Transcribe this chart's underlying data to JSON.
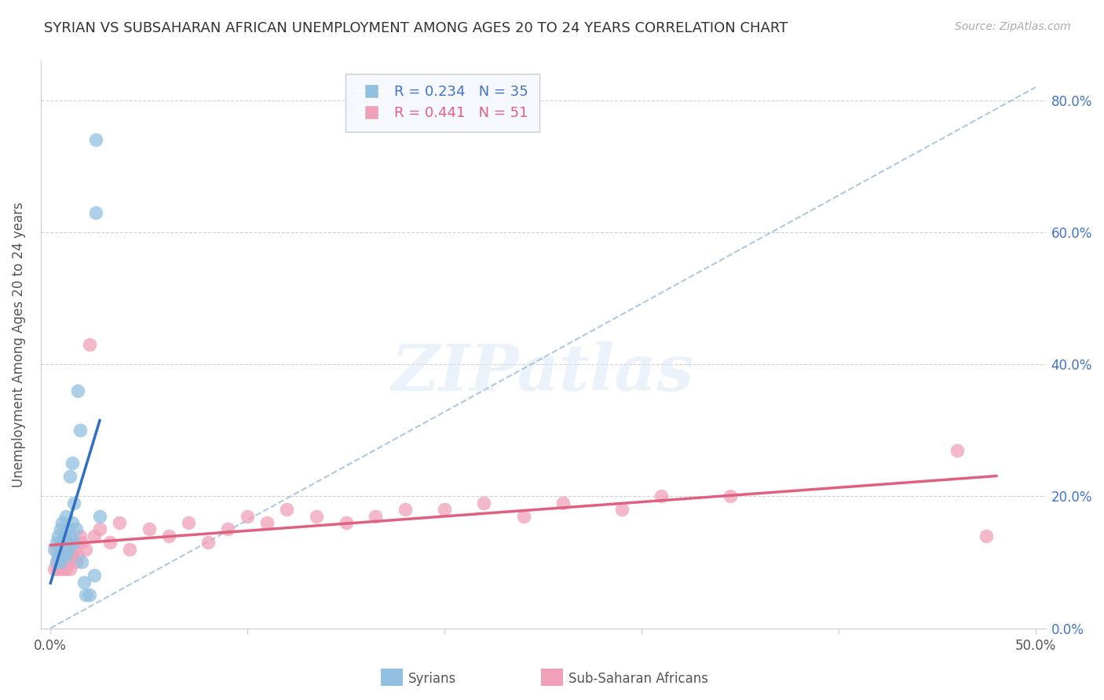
{
  "title": "SYRIAN VS SUBSAHARAN AFRICAN UNEMPLOYMENT AMONG AGES 20 TO 24 YEARS CORRELATION CHART",
  "source": "Source: ZipAtlas.com",
  "ylabel": "Unemployment Among Ages 20 to 24 years",
  "xlim": [
    0.0,
    0.5
  ],
  "ylim": [
    0.0,
    0.86
  ],
  "ytick_vals": [
    0.0,
    0.2,
    0.4,
    0.6,
    0.8
  ],
  "ytick_labels": [
    "0.0%",
    "20.0%",
    "40.0%",
    "60.0%",
    "80.0%"
  ],
  "xtick_vals": [
    0.0,
    0.1,
    0.2,
    0.3,
    0.4,
    0.5
  ],
  "xtick_labels": [
    "0.0%",
    "",
    "",
    "",
    "",
    "50.0%"
  ],
  "background_color": "#ffffff",
  "grid_color": "#d0d0d0",
  "syrian_R": 0.234,
  "syrian_N": 35,
  "subsaharan_R": 0.441,
  "subsaharan_N": 51,
  "syrian_color": "#92c0e0",
  "subsaharan_color": "#f0a0b8",
  "syrian_line_color": "#3070c0",
  "subsaharan_line_color": "#e06080",
  "diagonal_color": "#b0c8e0",
  "syrian_x": [
    0.002,
    0.003,
    0.003,
    0.004,
    0.004,
    0.005,
    0.005,
    0.005,
    0.006,
    0.006,
    0.006,
    0.007,
    0.007,
    0.008,
    0.008,
    0.008,
    0.009,
    0.009,
    0.01,
    0.01,
    0.011,
    0.011,
    0.012,
    0.012,
    0.013,
    0.014,
    0.015,
    0.016,
    0.017,
    0.018,
    0.02,
    0.022,
    0.023,
    0.023,
    0.025
  ],
  "syrian_y": [
    0.12,
    0.1,
    0.13,
    0.11,
    0.14,
    0.1,
    0.12,
    0.15,
    0.11,
    0.13,
    0.16,
    0.12,
    0.14,
    0.11,
    0.13,
    0.17,
    0.12,
    0.15,
    0.23,
    0.14,
    0.25,
    0.16,
    0.13,
    0.19,
    0.15,
    0.36,
    0.3,
    0.1,
    0.07,
    0.05,
    0.05,
    0.08,
    0.74,
    0.63,
    0.17
  ],
  "subsaharan_x": [
    0.002,
    0.003,
    0.003,
    0.004,
    0.004,
    0.005,
    0.005,
    0.006,
    0.006,
    0.007,
    0.007,
    0.008,
    0.008,
    0.009,
    0.009,
    0.01,
    0.01,
    0.011,
    0.012,
    0.013,
    0.014,
    0.015,
    0.016,
    0.018,
    0.02,
    0.022,
    0.025,
    0.03,
    0.035,
    0.04,
    0.05,
    0.06,
    0.07,
    0.08,
    0.09,
    0.1,
    0.11,
    0.12,
    0.135,
    0.15,
    0.165,
    0.18,
    0.2,
    0.22,
    0.24,
    0.26,
    0.29,
    0.31,
    0.345,
    0.46,
    0.475
  ],
  "subsaharan_y": [
    0.09,
    0.1,
    0.12,
    0.09,
    0.11,
    0.1,
    0.13,
    0.09,
    0.11,
    0.1,
    0.12,
    0.09,
    0.11,
    0.1,
    0.12,
    0.09,
    0.13,
    0.11,
    0.12,
    0.1,
    0.11,
    0.14,
    0.13,
    0.12,
    0.43,
    0.14,
    0.15,
    0.13,
    0.16,
    0.12,
    0.15,
    0.14,
    0.16,
    0.13,
    0.15,
    0.17,
    0.16,
    0.18,
    0.17,
    0.16,
    0.17,
    0.18,
    0.18,
    0.19,
    0.17,
    0.19,
    0.18,
    0.2,
    0.2,
    0.27,
    0.14
  ]
}
